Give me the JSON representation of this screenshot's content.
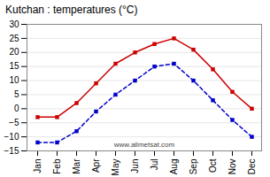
{
  "chart_data": {
    "type": "line",
    "title": "Kutchan : temperatures (°C)",
    "categories": [
      "Jan",
      "Feb",
      "Mar",
      "Apr",
      "May",
      "Jun",
      "Jul",
      "Aug",
      "Sep",
      "Oct",
      "Nov",
      "Dec"
    ],
    "series": [
      {
        "color": "#cc0000",
        "values": [
          -3,
          -3,
          2,
          9,
          16,
          20,
          23,
          25,
          21,
          14,
          6,
          0
        ],
        "marker": "square",
        "line_style": "solid"
      },
      {
        "color": "#0000cc",
        "values": [
          -12,
          -12,
          -8,
          -1,
          5,
          10,
          15,
          16,
          10,
          3,
          -4,
          -10
        ],
        "marker": "square",
        "line_style": "dashed"
      }
    ],
    "ylim": [
      -15,
      30
    ],
    "yticks": [
      -15,
      -10,
      -5,
      0,
      5,
      10,
      15,
      20,
      25,
      30
    ],
    "grid": true,
    "annotations": [
      "www.allmetsat.com"
    ]
  }
}
